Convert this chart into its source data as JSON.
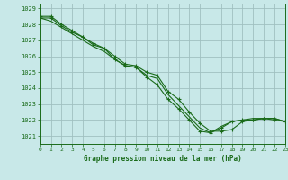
{
  "xlabel": "Graphe pression niveau de la mer (hPa)",
  "xlim": [
    0,
    23
  ],
  "ylim": [
    1020.5,
    1029.3
  ],
  "yticks": [
    1021,
    1022,
    1023,
    1024,
    1025,
    1026,
    1027,
    1028,
    1029
  ],
  "xticks": [
    0,
    1,
    2,
    3,
    4,
    5,
    6,
    7,
    8,
    9,
    10,
    11,
    12,
    13,
    14,
    15,
    16,
    17,
    18,
    19,
    20,
    21,
    22,
    23
  ],
  "bg_color": "#c8e8e8",
  "line_color": "#1a6b1a",
  "grid_color": "#a0c0c0",
  "series": [
    [
      1028.4,
      1028.4,
      1027.9,
      1027.5,
      1027.2,
      1026.8,
      1026.5,
      1025.8,
      1025.4,
      1025.3,
      1024.7,
      1024.2,
      1023.3,
      1022.7,
      1022.0,
      1021.3,
      1021.2,
      1021.5,
      1021.9,
      1022.0,
      1022.0,
      1022.1,
      1022.0,
      1021.9
    ],
    [
      1028.4,
      1028.2,
      1027.8,
      1027.4,
      1027.0,
      1026.6,
      1026.3,
      1025.8,
      1025.4,
      1025.3,
      1024.8,
      1024.6,
      1023.6,
      1022.9,
      1022.2,
      1021.5,
      1021.2,
      1021.6,
      1021.9,
      1022.0,
      1022.1,
      1022.1,
      1022.1,
      1021.9
    ],
    [
      1028.5,
      1028.5,
      1028.0,
      1027.6,
      1027.2,
      1026.7,
      1026.5,
      1026.0,
      1025.5,
      1025.4,
      1025.0,
      1024.8,
      1023.8,
      1023.3,
      1022.5,
      1021.8,
      1021.3,
      1021.3,
      1021.4,
      1021.9,
      1022.0,
      1022.1,
      1022.1,
      1021.9
    ]
  ],
  "markers_series": [
    0,
    2
  ],
  "no_markers_series": [
    1
  ]
}
